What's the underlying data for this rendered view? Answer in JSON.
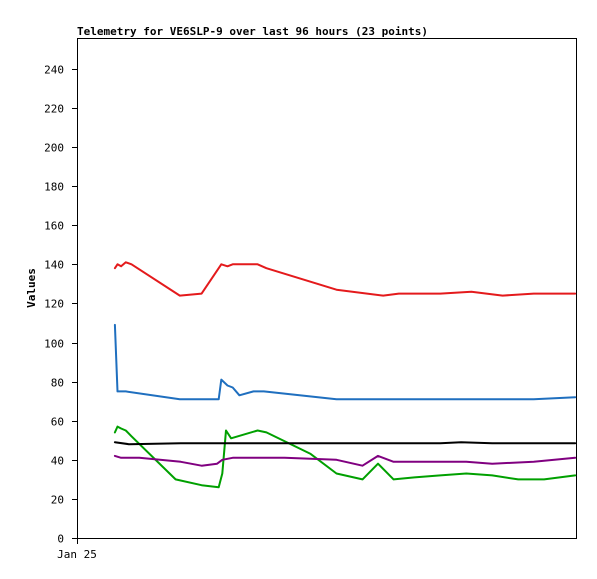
{
  "chart_data": {
    "type": "line",
    "title": "Telemetry for VE6SLP-9 over last 96 hours (23 points)",
    "xlabel": "",
    "ylabel": "Values",
    "ylim": [
      0,
      250
    ],
    "yticks": [
      0,
      20,
      40,
      60,
      80,
      100,
      120,
      140,
      160,
      180,
      200,
      220,
      240
    ],
    "xtick_labels": [
      "Jan 25"
    ],
    "grid": false,
    "legend": "none",
    "series": [
      {
        "color": "#e41a1c",
        "points": [
          [
            7.3,
            138
          ],
          [
            7.8,
            140
          ],
          [
            8.5,
            139
          ],
          [
            9.4,
            141
          ],
          [
            10.5,
            140
          ],
          [
            19.8,
            124
          ],
          [
            24.0,
            125
          ],
          [
            27.8,
            140
          ],
          [
            29.0,
            139
          ],
          [
            30.0,
            140
          ],
          [
            34.8,
            140
          ],
          [
            36.5,
            138
          ],
          [
            50,
            127
          ],
          [
            59,
            124
          ],
          [
            62,
            125
          ],
          [
            70,
            125
          ],
          [
            76,
            126
          ],
          [
            82,
            124
          ],
          [
            88,
            125
          ],
          [
            96,
            125
          ]
        ]
      },
      {
        "color": "#1f6fbf",
        "points": [
          [
            7.3,
            109
          ],
          [
            7.8,
            75
          ],
          [
            9.4,
            75
          ],
          [
            19.8,
            71
          ],
          [
            24.0,
            71
          ],
          [
            27.3,
            71
          ],
          [
            27.8,
            81
          ],
          [
            29.0,
            78
          ],
          [
            30.0,
            77
          ],
          [
            31.3,
            73
          ],
          [
            34.0,
            75
          ],
          [
            36.0,
            75
          ],
          [
            50,
            71
          ],
          [
            60,
            71
          ],
          [
            70,
            71
          ],
          [
            80,
            71
          ],
          [
            88,
            71
          ],
          [
            96,
            72
          ]
        ]
      },
      {
        "color": "#00a000",
        "points": [
          [
            7.3,
            54
          ],
          [
            7.8,
            57
          ],
          [
            8.5,
            56
          ],
          [
            9.4,
            55
          ],
          [
            10.5,
            52
          ],
          [
            19.0,
            30
          ],
          [
            24.0,
            27
          ],
          [
            27.3,
            26
          ],
          [
            28.0,
            33
          ],
          [
            28.7,
            55
          ],
          [
            29.7,
            51
          ],
          [
            34.8,
            55
          ],
          [
            36.5,
            54
          ],
          [
            45,
            43
          ],
          [
            50,
            33
          ],
          [
            55,
            30
          ],
          [
            58,
            38
          ],
          [
            61,
            30
          ],
          [
            65,
            31
          ],
          [
            70,
            32
          ],
          [
            75,
            33
          ],
          [
            80,
            32
          ],
          [
            85,
            30
          ],
          [
            90,
            30
          ],
          [
            96,
            32
          ]
        ]
      },
      {
        "color": "#000000",
        "points": [
          [
            7.3,
            49
          ],
          [
            10,
            48
          ],
          [
            20,
            48.5
          ],
          [
            30,
            48.5
          ],
          [
            40,
            48.5
          ],
          [
            50,
            48.5
          ],
          [
            60,
            48.5
          ],
          [
            70,
            48.5
          ],
          [
            74,
            49
          ],
          [
            80,
            48.5
          ],
          [
            96,
            48.5
          ]
        ]
      },
      {
        "color": "#800080",
        "points": [
          [
            7.3,
            42
          ],
          [
            8.5,
            41
          ],
          [
            12,
            41
          ],
          [
            20,
            39
          ],
          [
            24,
            37
          ],
          [
            27,
            38
          ],
          [
            28,
            40
          ],
          [
            30,
            41
          ],
          [
            34,
            41
          ],
          [
            40,
            41
          ],
          [
            50,
            40
          ],
          [
            55,
            37
          ],
          [
            58,
            42
          ],
          [
            61,
            39
          ],
          [
            70,
            39
          ],
          [
            75,
            39
          ],
          [
            80,
            38
          ],
          [
            88,
            39
          ],
          [
            96,
            41
          ]
        ]
      }
    ]
  }
}
